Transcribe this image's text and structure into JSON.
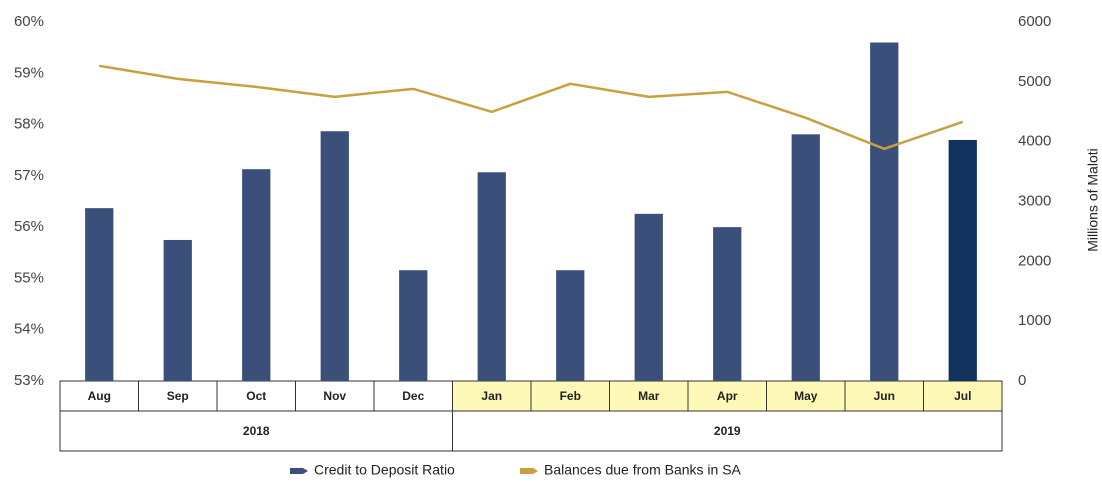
{
  "chart_data": {
    "type": "bar_line",
    "categories": [
      "Aug",
      "Sep",
      "Oct",
      "Nov",
      "Dec",
      "Jan",
      "Feb",
      "Mar",
      "Apr",
      "May",
      "Jun",
      "Jul"
    ],
    "groups": [
      {
        "label": "2018",
        "span": 5,
        "fill": "#ffffff"
      },
      {
        "label": "2019",
        "span": 7,
        "fill": "#fff9b8"
      }
    ],
    "series": [
      {
        "name": "Credit to Deposit Ratio",
        "type": "bar",
        "color": "#3a4f7a",
        "colors": [
          "#3a4f7a",
          "#3a4f7a",
          "#3a4f7a",
          "#3a4f7a",
          "#3a4f7a",
          "#3a4f7a",
          "#3a4f7a",
          "#3a4f7a",
          "#3a4f7a",
          "#3a4f7a",
          "#3a4f7a",
          "#12325e"
        ],
        "values": [
          56.37,
          55.75,
          57.13,
          57.87,
          55.16,
          57.07,
          55.16,
          56.26,
          56.0,
          57.81,
          59.6,
          57.7
        ]
      },
      {
        "name": "Balances due from Banks in SA",
        "type": "line",
        "axis": "y2",
        "color": "#c9a040",
        "values": [
          5268,
          5050,
          4916,
          4749,
          4883,
          4498,
          4967,
          4749,
          4833,
          4398,
          3880,
          4331
        ]
      }
    ],
    "ylim": [
      53,
      60
    ],
    "yticks": [
      {
        "value": 53,
        "label": "53%"
      },
      {
        "value": 54,
        "label": "54%"
      },
      {
        "value": 55,
        "label": "55%"
      },
      {
        "value": 56,
        "label": "56%"
      },
      {
        "value": 57,
        "label": "57%"
      },
      {
        "value": 58,
        "label": "58%"
      },
      {
        "value": 59,
        "label": "59%"
      },
      {
        "value": 60,
        "label": "60%"
      }
    ],
    "y2lim": [
      0,
      6000
    ],
    "y2ticks": [
      0,
      1000,
      2000,
      3000,
      4000,
      5000,
      6000
    ],
    "y2label": "Millions of Maloti",
    "legend": "bottom"
  }
}
